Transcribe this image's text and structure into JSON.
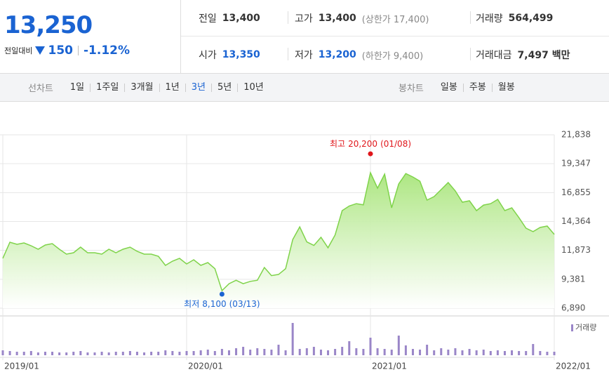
{
  "quote": {
    "price": "13,250",
    "change_label": "전일대비",
    "change": "150",
    "change_rate": "-1.12%"
  },
  "stats": [
    [
      {
        "label": "전일",
        "value": "13,400"
      },
      {
        "label": "고가",
        "value": "13,400",
        "note": "(상한가 17,400)"
      },
      {
        "label": "거래량",
        "value": "564,499"
      }
    ],
    [
      {
        "label": "시가",
        "value": "13,350"
      },
      {
        "label": "저가",
        "value": "13,200",
        "note": "(하한가 9,400)"
      },
      {
        "label": "거래대금",
        "value": "7,497 백만"
      }
    ]
  ],
  "line_tabs": {
    "label": "선차트",
    "items": [
      "1일",
      "1주일",
      "3개월",
      "1년",
      "3년",
      "5년",
      "10년"
    ],
    "active": "3년"
  },
  "candle_tabs": {
    "label": "봉차트",
    "items": [
      "일봉",
      "주봉",
      "월봉"
    ]
  },
  "chart_data": {
    "type": "line",
    "color": "#7fd34a",
    "categories": [
      "2019/01",
      null,
      null,
      null,
      null,
      null,
      null,
      null,
      null,
      null,
      null,
      null,
      null,
      null,
      null,
      null,
      null,
      null,
      null,
      null,
      null,
      null,
      null,
      null,
      null,
      null,
      "2020/01",
      null,
      null,
      null,
      null,
      null,
      null,
      null,
      null,
      null,
      null,
      null,
      null,
      null,
      null,
      null,
      null,
      null,
      null,
      null,
      null,
      null,
      null,
      null,
      null,
      null,
      "2021/01",
      null,
      null,
      null,
      null,
      null,
      null,
      null,
      null,
      null,
      null,
      null,
      null,
      null,
      null,
      null,
      null,
      null,
      null,
      null,
      null,
      null,
      null,
      null,
      null,
      null,
      "2022/01"
    ],
    "values": [
      11186,
      12578,
      12397,
      12518,
      12276,
      11973,
      12337,
      12457,
      11973,
      11550,
      11671,
      12155,
      11671,
      11671,
      11550,
      11973,
      11671,
      11973,
      12155,
      11792,
      11550,
      11550,
      11368,
      10581,
      10945,
      11186,
      10702,
      11065,
      10581,
      10823,
      10300,
      8400,
      9000,
      9300,
      9000,
      9200,
      9300,
      10400,
      9700,
      9800,
      10300,
      12800,
      13900,
      12600,
      12300,
      13000,
      12100,
      13200,
      15300,
      15700,
      15900,
      15800,
      18570,
      17240,
      18450,
      15545,
      17600,
      18500,
      18200,
      17840,
      16210,
      16510,
      17120,
      17720,
      17000,
      16030,
      16150,
      15300,
      15780,
      15900,
      16270,
      15300,
      15545,
      14700,
      13790,
      13490,
      13850,
      13970,
      13250
    ],
    "ylim": [
      6890,
      21838
    ],
    "yticks": [
      {
        "value": 21838,
        "label": "21,838"
      },
      {
        "value": 19347,
        "label": "19,347"
      },
      {
        "value": 16855,
        "label": "16,855"
      },
      {
        "value": 14364,
        "label": "14,364"
      },
      {
        "value": 11873,
        "label": "11,873"
      },
      {
        "value": 9381,
        "label": "9,381"
      },
      {
        "value": 6890,
        "label": "6,890"
      }
    ],
    "grid": true,
    "annotations": [
      {
        "label": "최고",
        "value": 20200,
        "value_label": "20,200",
        "date": "(01/08)",
        "color": "#e0161b"
      },
      {
        "label": "최저",
        "value": 8100,
        "value_label": "8,100",
        "date": "(03/13)",
        "color": "#1a63d2"
      }
    ],
    "volume": {
      "name": "거래량",
      "color": "#9a86c8",
      "values": [
        700000,
        600000,
        500000,
        500000,
        600000,
        400000,
        500000,
        500000,
        400000,
        400000,
        500000,
        600000,
        400000,
        400000,
        500000,
        400000,
        500000,
        500000,
        600000,
        500000,
        400000,
        500000,
        500000,
        700000,
        600000,
        500000,
        600000,
        600000,
        700000,
        800000,
        600000,
        900000,
        700000,
        1000000,
        1200000,
        800000,
        1000000,
        900000,
        800000,
        1500000,
        700000,
        4600000,
        900000,
        1000000,
        1200000,
        800000,
        700000,
        900000,
        1200000,
        2000000,
        1000000,
        900000,
        2500000,
        1000000,
        900000,
        800000,
        2800000,
        1400000,
        900000,
        800000,
        1500000,
        700000,
        1000000,
        800000,
        1000000,
        700000,
        900000,
        700000,
        800000,
        600000,
        700000,
        600000,
        700000,
        600000,
        600000,
        1600000,
        600000,
        500000,
        500000
      ]
    }
  }
}
